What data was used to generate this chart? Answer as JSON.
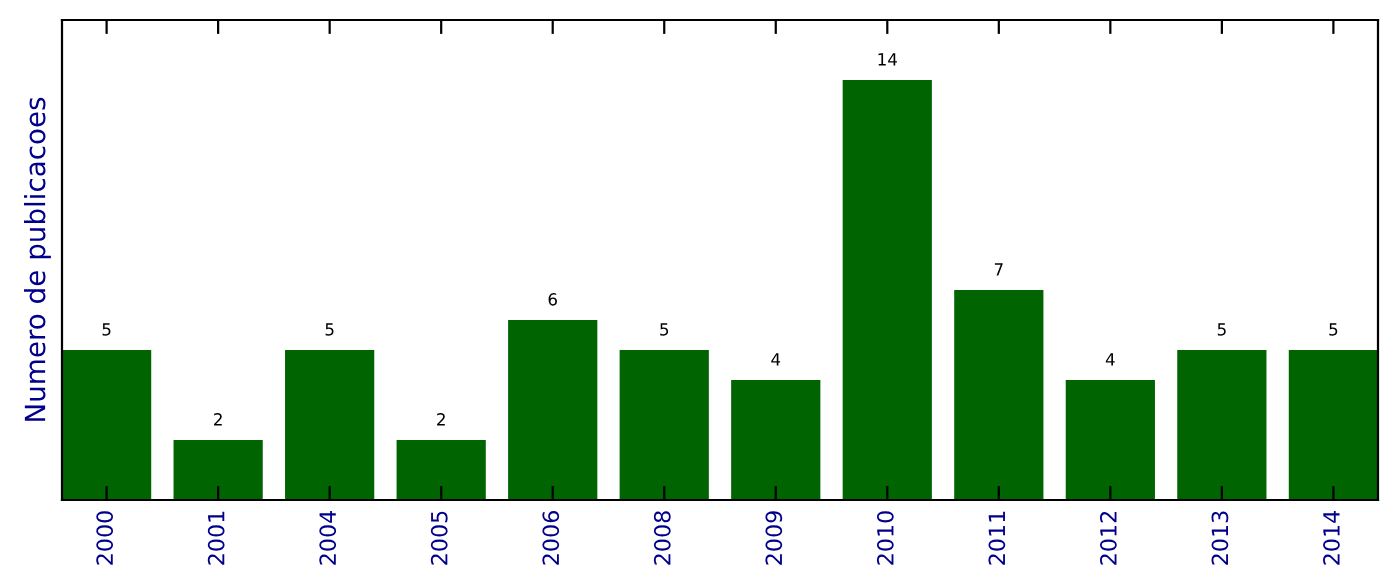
{
  "chart_data": {
    "type": "bar",
    "ylabel": "Numero de publicacoes",
    "categories": [
      "2000",
      "2001",
      "2004",
      "2005",
      "2006",
      "2008",
      "2009",
      "2010",
      "2011",
      "2012",
      "2013",
      "2014"
    ],
    "values": [
      5,
      2,
      5,
      2,
      6,
      5,
      4,
      14,
      7,
      4,
      5,
      5
    ],
    "color": "#006400",
    "ylim": [
      0,
      16
    ],
    "tick_labels": "x",
    "data_labels": true,
    "grid": false
  }
}
